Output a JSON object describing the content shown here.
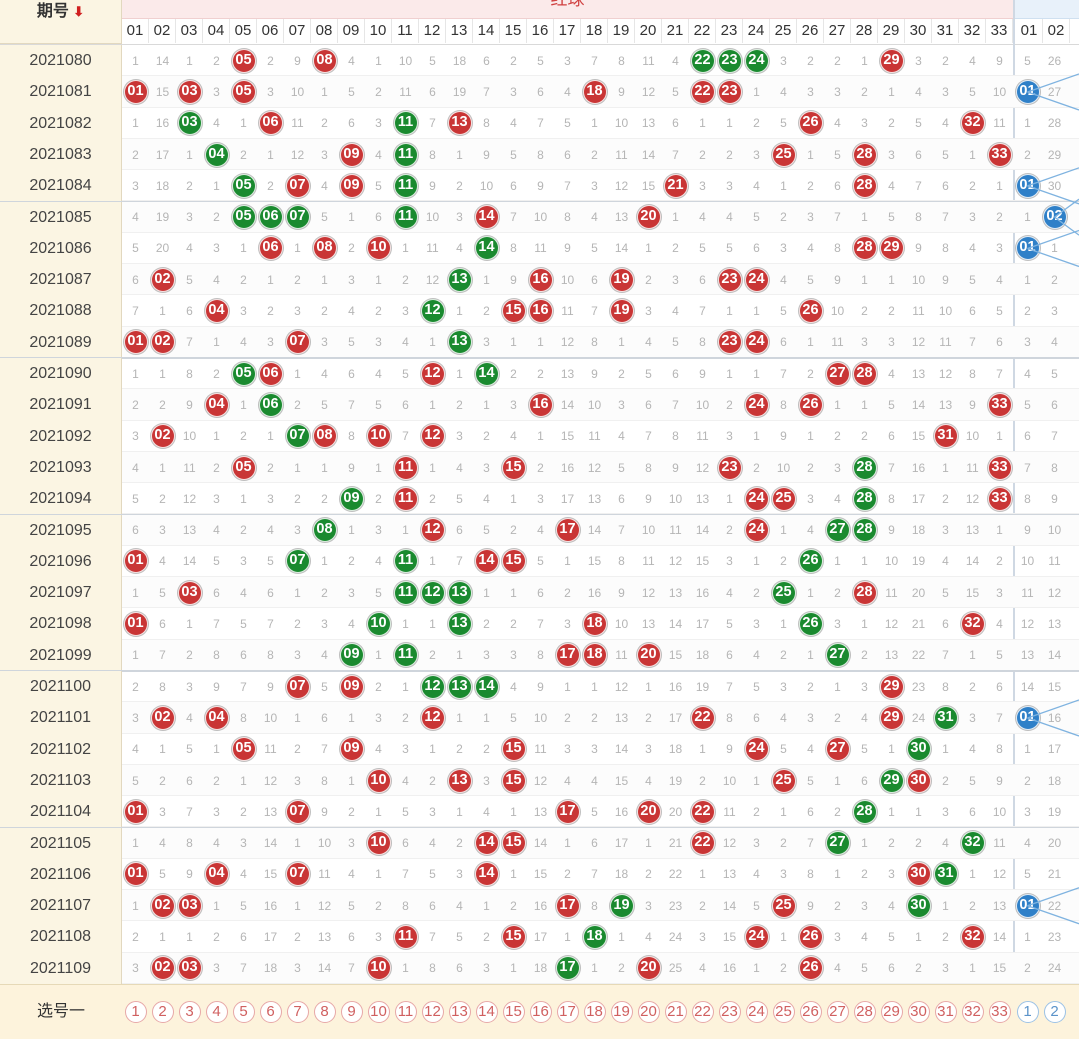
{
  "header": {
    "period_label": "期号",
    "sort_icon": "down-arrow-icon",
    "red_section_title": "红球",
    "red_columns": [
      "01",
      "02",
      "03",
      "04",
      "05",
      "06",
      "07",
      "08",
      "09",
      "10",
      "11",
      "12",
      "13",
      "14",
      "15",
      "16",
      "17",
      "18",
      "19",
      "20",
      "21",
      "22",
      "23",
      "24",
      "25",
      "26",
      "27",
      "28",
      "29",
      "30",
      "31",
      "32",
      "33"
    ],
    "blue_columns": [
      "01",
      "02"
    ]
  },
  "colors": {
    "red_ball": "#c93535",
    "green_ball": "#1a8a2f",
    "blue_ball": "#2f80c8",
    "period_bg": "#fbf5e3",
    "select_bg": "#fdf3dc"
  },
  "rows": [
    {
      "period": "2021080",
      "cells": [
        1,
        14,
        1,
        2,
        "r05",
        2,
        9,
        "r08",
        4,
        1,
        10,
        5,
        18,
        6,
        2,
        5,
        3,
        7,
        8,
        11,
        4,
        "g22",
        "g23",
        "g24",
        3,
        2,
        2,
        1,
        "r29",
        3,
        2,
        4,
        9
      ],
      "blue": [
        5,
        26
      ]
    },
    {
      "period": "2021081",
      "cells": [
        "r01",
        15,
        "r03",
        3,
        "r05",
        3,
        10,
        1,
        5,
        2,
        11,
        6,
        19,
        7,
        3,
        6,
        4,
        "r18",
        9,
        12,
        5,
        "r22",
        "r23",
        1,
        4,
        3,
        3,
        2,
        1,
        4,
        3,
        5,
        10
      ],
      "blue": [
        "b01",
        27
      ]
    },
    {
      "period": "2021082",
      "cells": [
        1,
        16,
        "g03",
        4,
        1,
        "r06",
        11,
        2,
        6,
        3,
        "g11",
        7,
        "r13",
        8,
        4,
        7,
        5,
        1,
        10,
        13,
        6,
        1,
        1,
        2,
        5,
        "r26",
        4,
        3,
        2,
        5,
        4,
        "r32",
        11
      ],
      "blue": [
        1,
        28
      ]
    },
    {
      "period": "2021083",
      "cells": [
        2,
        17,
        1,
        "g04",
        2,
        1,
        12,
        3,
        "r09",
        4,
        "g11",
        8,
        1,
        9,
        5,
        8,
        6,
        2,
        11,
        14,
        7,
        2,
        2,
        3,
        "r25",
        1,
        5,
        "r28",
        3,
        6,
        5,
        1,
        "r33"
      ],
      "blue": [
        2,
        29
      ]
    },
    {
      "period": "2021084",
      "cells": [
        3,
        18,
        2,
        1,
        "g05",
        2,
        "r07",
        4,
        "r09",
        5,
        "g11",
        9,
        2,
        10,
        6,
        9,
        7,
        3,
        12,
        15,
        "r21",
        3,
        3,
        4,
        1,
        2,
        6,
        "r28",
        4,
        7,
        6,
        2,
        1
      ],
      "blue": [
        "b01",
        30
      ]
    },
    {
      "period": "2021085",
      "cells": [
        4,
        19,
        3,
        2,
        "g05",
        "g06",
        "g07",
        5,
        1,
        6,
        "g11",
        10,
        3,
        "r14",
        7,
        10,
        8,
        4,
        13,
        "r20",
        1,
        4,
        4,
        5,
        2,
        3,
        7,
        1,
        5,
        8,
        7,
        3,
        2
      ],
      "blue": [
        1,
        "b02"
      ]
    },
    {
      "period": "2021086",
      "cells": [
        5,
        20,
        4,
        3,
        1,
        "r06",
        1,
        "r08",
        2,
        "r10",
        1,
        11,
        4,
        "g14",
        8,
        11,
        9,
        5,
        14,
        1,
        2,
        5,
        5,
        6,
        3,
        4,
        8,
        "r28",
        "r29",
        9,
        8,
        4,
        3
      ],
      "blue": [
        "b01",
        1
      ]
    },
    {
      "period": "2021087",
      "cells": [
        6,
        "r02",
        5,
        4,
        2,
        1,
        2,
        1,
        3,
        1,
        2,
        12,
        "g13",
        1,
        9,
        "r16",
        10,
        6,
        "r19",
        2,
        3,
        6,
        "r23",
        "r24",
        4,
        5,
        9,
        1,
        1,
        10,
        9,
        5,
        4
      ],
      "blue": [
        1,
        2
      ]
    },
    {
      "period": "2021088",
      "cells": [
        7,
        1,
        6,
        "r04",
        3,
        2,
        3,
        2,
        4,
        2,
        3,
        "g12",
        1,
        2,
        "r15",
        "r16",
        11,
        7,
        "r19",
        3,
        4,
        7,
        1,
        1,
        5,
        "r26",
        10,
        2,
        2,
        11,
        10,
        6,
        5
      ],
      "blue": [
        2,
        3
      ]
    },
    {
      "period": "2021089",
      "cells": [
        "r01",
        "r02",
        7,
        1,
        4,
        3,
        "r07",
        3,
        5,
        3,
        4,
        1,
        "g13",
        3,
        1,
        1,
        12,
        8,
        1,
        4,
        5,
        8,
        "r23",
        "r24",
        6,
        1,
        11,
        3,
        3,
        12,
        11,
        7,
        6
      ],
      "blue": [
        3,
        4
      ]
    },
    {
      "period": "2021090",
      "cells": [
        1,
        1,
        8,
        2,
        "g05",
        "r06",
        1,
        4,
        6,
        4,
        5,
        "r12",
        1,
        "g14",
        2,
        2,
        13,
        9,
        2,
        5,
        6,
        9,
        1,
        1,
        7,
        2,
        "r27",
        "r28",
        4,
        13,
        12,
        8,
        7
      ],
      "blue": [
        4,
        5
      ]
    },
    {
      "period": "2021091",
      "cells": [
        2,
        2,
        9,
        "r04",
        1,
        "g06",
        2,
        5,
        7,
        5,
        6,
        1,
        2,
        1,
        3,
        "r16",
        14,
        10,
        3,
        6,
        7,
        10,
        2,
        "r24",
        8,
        "r26",
        1,
        1,
        5,
        14,
        13,
        9,
        "r33"
      ],
      "blue": [
        5,
        6
      ]
    },
    {
      "period": "2021092",
      "cells": [
        3,
        "r02",
        10,
        1,
        2,
        1,
        "g07",
        "r08",
        8,
        "r10",
        7,
        "r12",
        3,
        2,
        4,
        1,
        15,
        11,
        4,
        7,
        8,
        11,
        3,
        1,
        9,
        1,
        2,
        2,
        6,
        15,
        "r31",
        10,
        1
      ],
      "blue": [
        6,
        7
      ]
    },
    {
      "period": "2021093",
      "cells": [
        4,
        1,
        11,
        2,
        "r05",
        2,
        1,
        1,
        9,
        1,
        "r11",
        1,
        4,
        3,
        "r15",
        2,
        16,
        12,
        5,
        8,
        9,
        12,
        "r23",
        2,
        10,
        2,
        3,
        "g28",
        7,
        16,
        1,
        11,
        "r33"
      ],
      "blue": [
        7,
        8
      ]
    },
    {
      "period": "2021094",
      "cells": [
        5,
        2,
        12,
        3,
        1,
        3,
        2,
        2,
        "g09",
        2,
        "r11",
        2,
        5,
        4,
        1,
        3,
        17,
        13,
        6,
        9,
        10,
        13,
        1,
        "r24",
        "r25",
        3,
        4,
        "g28",
        8,
        17,
        2,
        12,
        "r33"
      ],
      "blue": [
        8,
        9
      ]
    },
    {
      "period": "2021095",
      "cells": [
        6,
        3,
        13,
        4,
        2,
        4,
        3,
        "g08",
        1,
        3,
        1,
        "r12",
        6,
        5,
        2,
        4,
        "r17",
        14,
        7,
        10,
        11,
        14,
        2,
        "r24",
        1,
        4,
        "g27",
        "g28",
        9,
        18,
        3,
        13,
        1
      ],
      "blue": [
        9,
        10
      ]
    },
    {
      "period": "2021096",
      "cells": [
        "r01",
        4,
        14,
        5,
        3,
        5,
        "g07",
        1,
        2,
        4,
        "g11",
        1,
        7,
        "r14",
        "r15",
        5,
        1,
        15,
        8,
        11,
        12,
        15,
        3,
        1,
        2,
        "g26",
        1,
        1,
        10,
        19,
        4,
        14,
        2
      ],
      "blue": [
        10,
        11
      ]
    },
    {
      "period": "2021097",
      "cells": [
        1,
        5,
        "r03",
        6,
        4,
        6,
        1,
        2,
        3,
        5,
        "g11",
        "g12",
        "g13",
        1,
        1,
        6,
        2,
        16,
        9,
        12,
        13,
        16,
        4,
        2,
        "g25",
        1,
        2,
        "r28",
        11,
        20,
        5,
        15,
        3
      ],
      "blue": [
        11,
        12
      ]
    },
    {
      "period": "2021098",
      "cells": [
        "r01",
        6,
        1,
        7,
        5,
        7,
        2,
        3,
        4,
        "g10",
        1,
        1,
        "g13",
        2,
        2,
        7,
        3,
        "r18",
        10,
        13,
        14,
        17,
        5,
        3,
        1,
        "g26",
        3,
        1,
        12,
        21,
        6,
        "r32",
        4
      ],
      "blue": [
        12,
        13
      ]
    },
    {
      "period": "2021099",
      "cells": [
        1,
        7,
        2,
        8,
        6,
        8,
        3,
        4,
        "g09",
        1,
        "g11",
        2,
        1,
        3,
        3,
        8,
        "r17",
        "r18",
        11,
        "r20",
        15,
        18,
        6,
        4,
        2,
        1,
        "g27",
        2,
        13,
        22,
        7,
        1,
        5
      ],
      "blue": [
        13,
        14
      ]
    },
    {
      "period": "2021100",
      "cells": [
        2,
        8,
        3,
        9,
        7,
        9,
        "r07",
        5,
        "r09",
        2,
        1,
        "g12",
        "g13",
        "g14",
        4,
        9,
        1,
        1,
        12,
        1,
        16,
        19,
        7,
        5,
        3,
        2,
        1,
        3,
        "r29",
        23,
        8,
        2,
        6
      ],
      "blue": [
        14,
        15
      ]
    },
    {
      "period": "2021101",
      "cells": [
        3,
        "r02",
        4,
        "r04",
        8,
        10,
        1,
        6,
        1,
        3,
        2,
        "r12",
        1,
        1,
        5,
        10,
        2,
        2,
        13,
        2,
        17,
        "r22",
        8,
        6,
        4,
        3,
        2,
        4,
        "r29",
        24,
        "g31",
        3,
        7
      ],
      "blue": [
        "b01",
        16
      ]
    },
    {
      "period": "2021102",
      "cells": [
        4,
        1,
        5,
        1,
        "r05",
        11,
        2,
        7,
        "r09",
        4,
        3,
        1,
        2,
        2,
        "r15",
        11,
        3,
        3,
        14,
        3,
        18,
        1,
        9,
        "r24",
        5,
        4,
        "r27",
        5,
        1,
        "g30",
        1,
        4,
        8
      ],
      "blue": [
        1,
        17
      ]
    },
    {
      "period": "2021103",
      "cells": [
        5,
        2,
        6,
        2,
        1,
        12,
        3,
        8,
        1,
        "r10",
        4,
        2,
        "r13",
        3,
        "r15",
        12,
        4,
        4,
        15,
        4,
        19,
        2,
        10,
        1,
        "r25",
        5,
        1,
        6,
        "g29",
        "r30",
        2,
        5,
        9
      ],
      "blue": [
        2,
        18
      ]
    },
    {
      "period": "2021104",
      "cells": [
        "r01",
        3,
        7,
        3,
        2,
        13,
        "r07",
        9,
        2,
        1,
        5,
        3,
        1,
        4,
        1,
        13,
        "r17",
        5,
        16,
        "r20",
        20,
        "r22",
        11,
        2,
        1,
        6,
        2,
        "g28",
        1,
        1,
        3,
        6,
        10
      ],
      "blue": [
        3,
        19
      ]
    },
    {
      "period": "2021105",
      "cells": [
        1,
        4,
        8,
        4,
        3,
        14,
        1,
        10,
        3,
        "r10",
        6,
        4,
        2,
        "r14",
        "r15",
        14,
        1,
        6,
        17,
        1,
        21,
        "r22",
        12,
        3,
        2,
        7,
        "g27",
        1,
        2,
        2,
        4,
        "g32",
        11
      ],
      "blue": [
        4,
        20
      ]
    },
    {
      "period": "2021106",
      "cells": [
        "r01",
        5,
        9,
        "r04",
        4,
        15,
        "r07",
        11,
        4,
        1,
        7,
        5,
        3,
        "r14",
        1,
        15,
        2,
        7,
        18,
        2,
        22,
        1,
        13,
        4,
        3,
        8,
        1,
        2,
        3,
        "r30",
        "g31",
        1,
        12
      ],
      "blue": [
        5,
        21
      ]
    },
    {
      "period": "2021107",
      "cells": [
        1,
        "r02",
        "r03",
        1,
        5,
        16,
        1,
        12,
        5,
        2,
        8,
        6,
        4,
        1,
        2,
        16,
        "r17",
        8,
        "g19",
        3,
        23,
        2,
        14,
        5,
        "r25",
        9,
        2,
        3,
        4,
        "g30",
        1,
        2,
        13
      ],
      "blue": [
        "b01",
        22
      ]
    },
    {
      "period": "2021108",
      "cells": [
        2,
        1,
        1,
        2,
        6,
        17,
        2,
        13,
        6,
        3,
        "r11",
        7,
        5,
        2,
        "r15",
        17,
        1,
        "g18",
        1,
        4,
        24,
        3,
        15,
        "r24",
        1,
        "r26",
        3,
        4,
        5,
        1,
        2,
        "r32",
        14
      ],
      "blue": [
        1,
        23
      ]
    },
    {
      "period": "2021109",
      "cells": [
        3,
        "r02",
        "r03",
        3,
        7,
        18,
        3,
        14,
        7,
        "r10",
        1,
        8,
        6,
        3,
        1,
        18,
        "g17",
        1,
        2,
        "r20",
        25,
        4,
        16,
        1,
        2,
        "r26",
        4,
        5,
        6,
        2,
        3,
        1,
        15
      ],
      "blue": [
        2,
        24
      ]
    }
  ],
  "footer": {
    "select_label": "选号一",
    "red_options": [
      "1",
      "2",
      "3",
      "4",
      "5",
      "6",
      "7",
      "8",
      "9",
      "10",
      "11",
      "12",
      "13",
      "14",
      "15",
      "16",
      "17",
      "18",
      "19",
      "20",
      "21",
      "22",
      "23",
      "24",
      "25",
      "26",
      "27",
      "28",
      "29",
      "30",
      "31",
      "32",
      "33"
    ],
    "blue_options": [
      "1",
      "2"
    ]
  }
}
